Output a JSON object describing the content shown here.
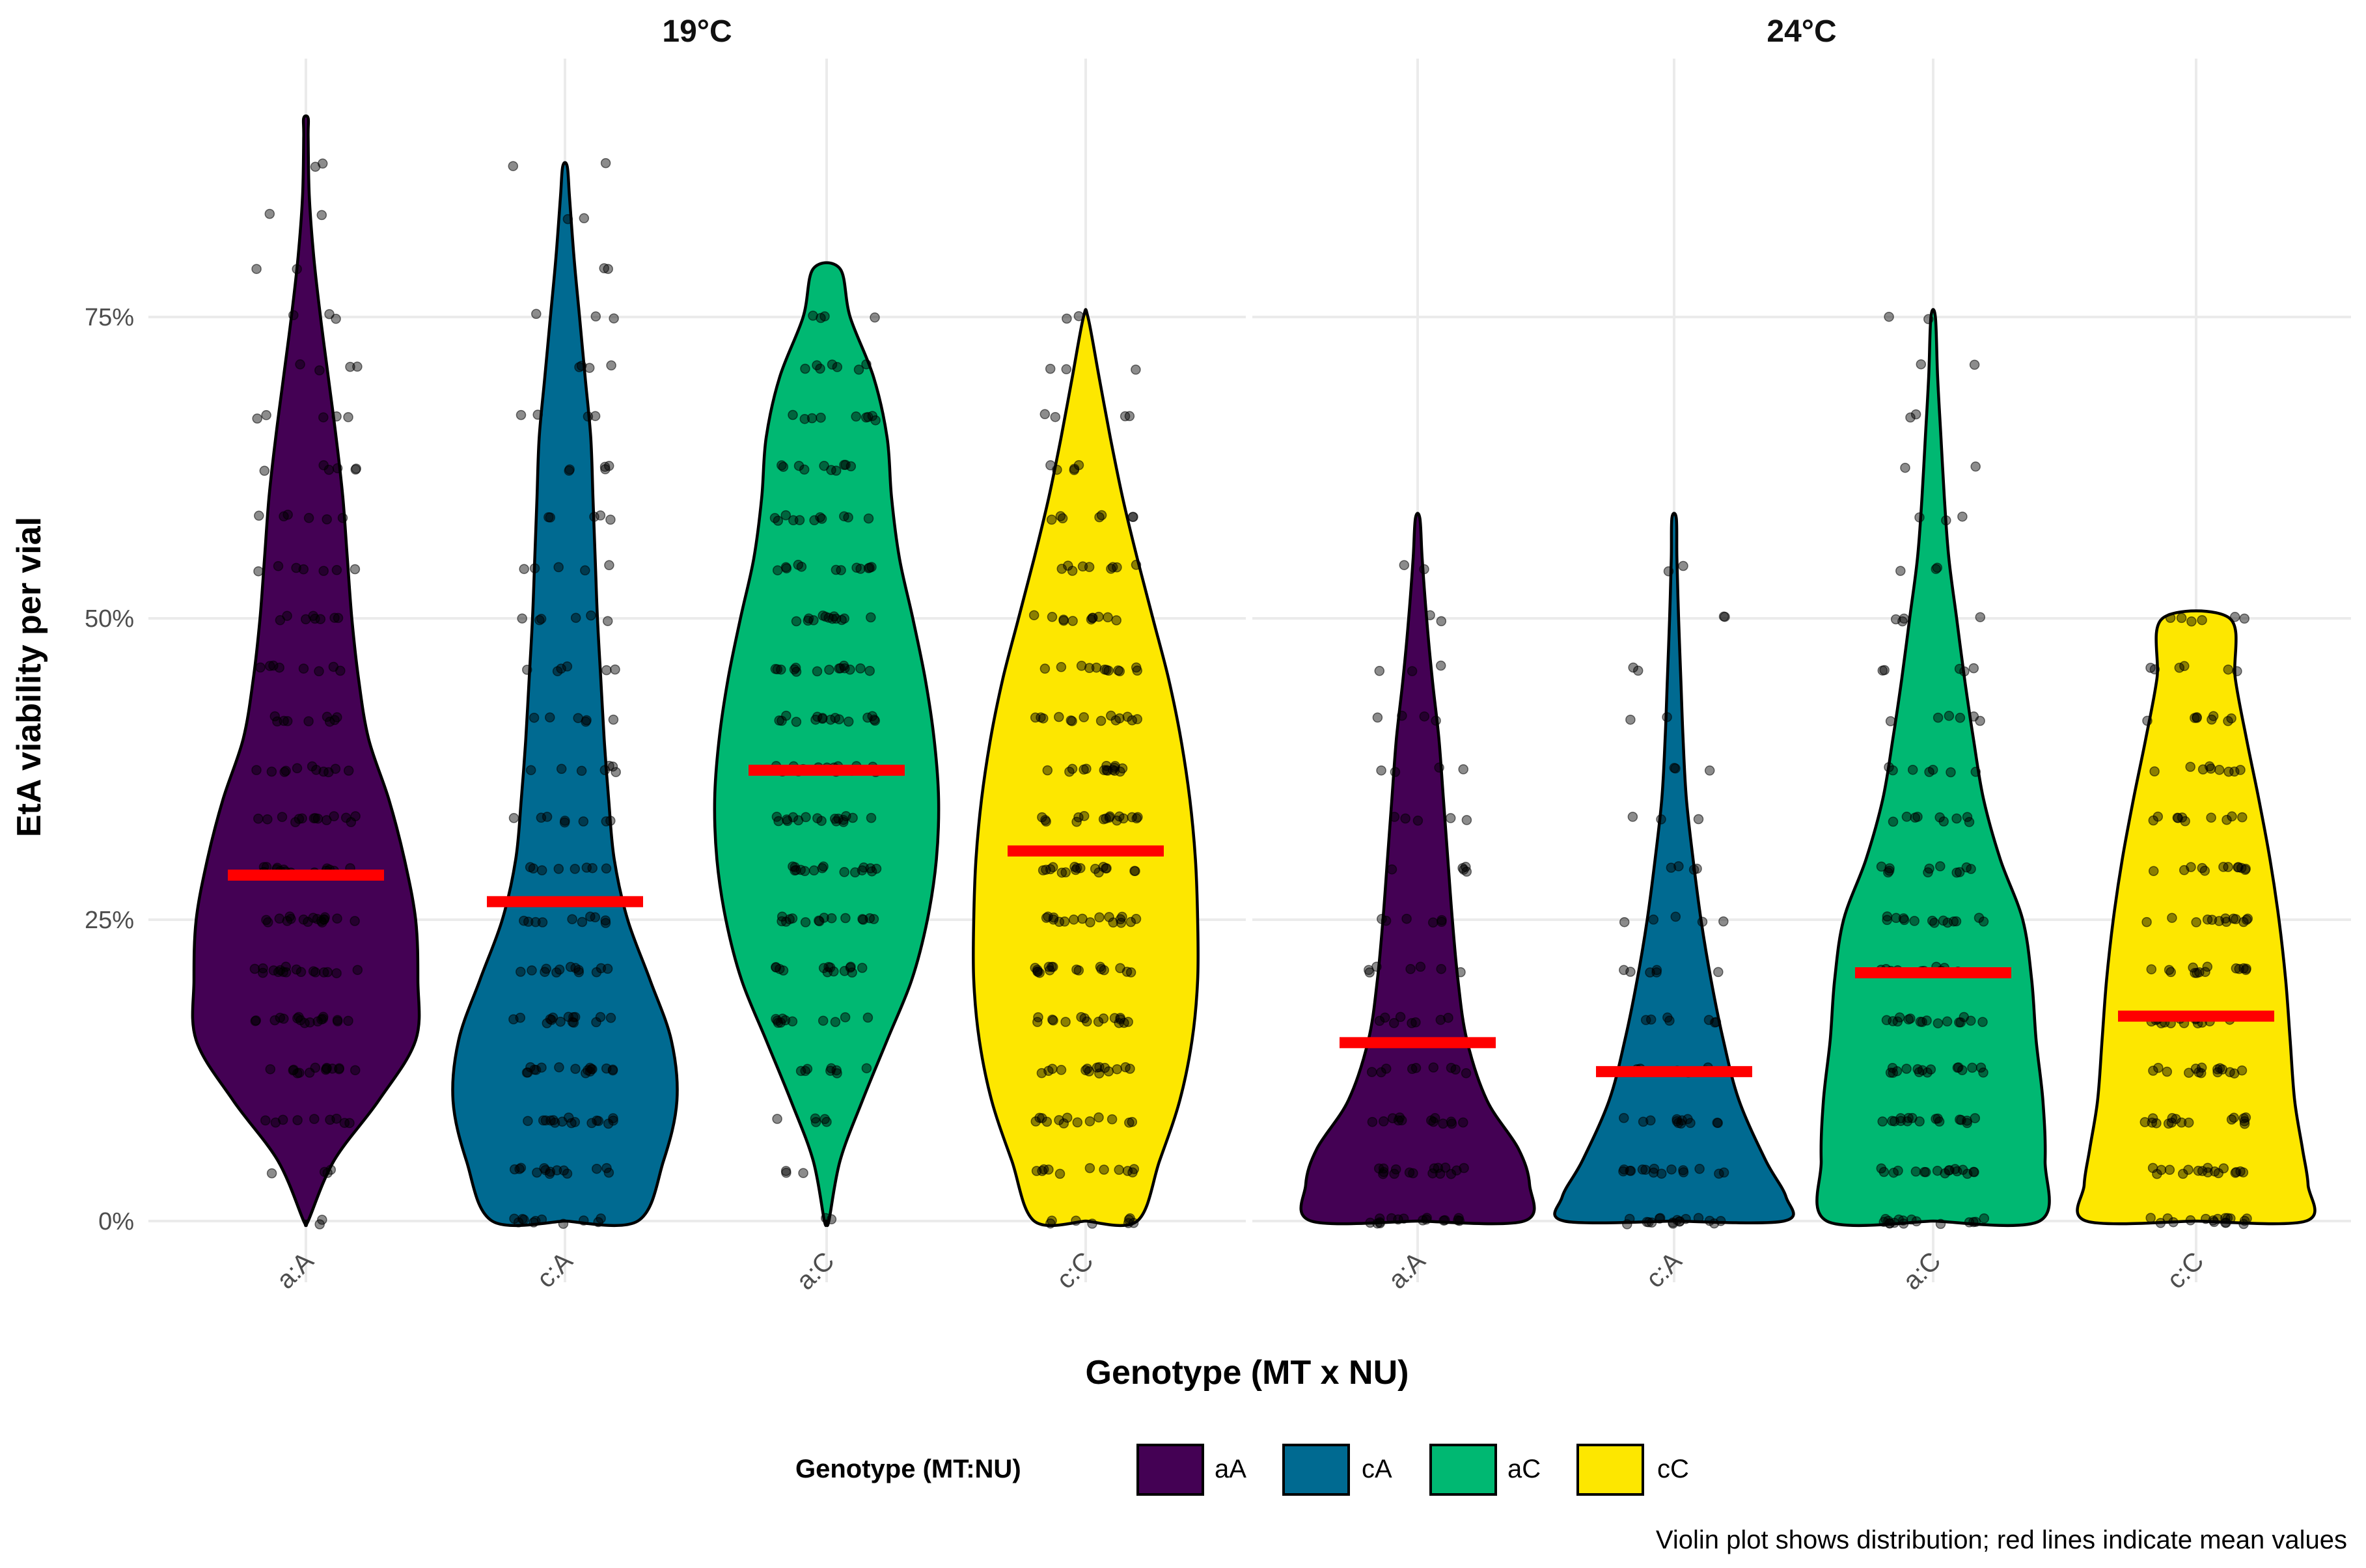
{
  "chart_data": {
    "type": "violin",
    "ylabel": "EtA viability per vial",
    "xlabel": "Genotype (MT x NU)",
    "ylim": [
      -0.05,
      0.95
    ],
    "yticks": [
      0,
      0.25,
      0.5,
      0.75
    ],
    "ytick_labels": [
      "0%",
      "25%",
      "50%",
      "75%"
    ],
    "categories": [
      "a:A",
      "c:A",
      "a:C",
      "c:C"
    ],
    "legend": {
      "title": "Genotype (MT:NU)",
      "entries": [
        {
          "label": "aA",
          "color": "#440154"
        },
        {
          "label": "cA",
          "color": "#006a91"
        },
        {
          "label": "aC",
          "color": "#00b872"
        },
        {
          "label": "cC",
          "color": "#fde700"
        }
      ]
    },
    "caption": "Violin plot shows distribution; red lines indicate mean values",
    "panels": [
      {
        "title": "19°C",
        "violins": [
          {
            "category": "a:A",
            "color": "#440154",
            "mean": 0.287,
            "min": 0,
            "max": 0.915,
            "density": [
              [
                0,
                0.02
              ],
              [
                0.05,
                0.25
              ],
              [
                0.1,
                0.65
              ],
              [
                0.15,
                0.98
              ],
              [
                0.2,
                1.0
              ],
              [
                0.25,
                0.98
              ],
              [
                0.3,
                0.88
              ],
              [
                0.35,
                0.74
              ],
              [
                0.4,
                0.56
              ],
              [
                0.45,
                0.47
              ],
              [
                0.5,
                0.41
              ],
              [
                0.55,
                0.37
              ],
              [
                0.6,
                0.33
              ],
              [
                0.65,
                0.27
              ],
              [
                0.7,
                0.2
              ],
              [
                0.75,
                0.13
              ],
              [
                0.8,
                0.07
              ],
              [
                0.85,
                0.03
              ],
              [
                0.9,
                0.02
              ],
              [
                0.915,
                0.02
              ]
            ]
          },
          {
            "category": "c:A",
            "color": "#006a91",
            "mean": 0.265,
            "min": 0,
            "max": 0.875,
            "density": [
              [
                0,
                0.65
              ],
              [
                0.05,
                0.88
              ],
              [
                0.1,
                1.0
              ],
              [
                0.15,
                0.95
              ],
              [
                0.2,
                0.76
              ],
              [
                0.25,
                0.56
              ],
              [
                0.3,
                0.44
              ],
              [
                0.35,
                0.39
              ],
              [
                0.4,
                0.35
              ],
              [
                0.45,
                0.32
              ],
              [
                0.5,
                0.29
              ],
              [
                0.55,
                0.27
              ],
              [
                0.6,
                0.25
              ],
              [
                0.65,
                0.23
              ],
              [
                0.7,
                0.18
              ],
              [
                0.75,
                0.13
              ],
              [
                0.8,
                0.08
              ],
              [
                0.85,
                0.04
              ],
              [
                0.875,
                0.02
              ]
            ]
          },
          {
            "category": "a:C",
            "color": "#00b872",
            "mean": 0.374,
            "min": 0,
            "max": 0.79,
            "density": [
              [
                0,
                0.02
              ],
              [
                0.05,
                0.12
              ],
              [
                0.1,
                0.32
              ],
              [
                0.15,
                0.54
              ],
              [
                0.2,
                0.76
              ],
              [
                0.25,
                0.9
              ],
              [
                0.3,
                0.98
              ],
              [
                0.35,
                1.0
              ],
              [
                0.4,
                0.96
              ],
              [
                0.45,
                0.88
              ],
              [
                0.5,
                0.77
              ],
              [
                0.55,
                0.65
              ],
              [
                0.6,
                0.58
              ],
              [
                0.65,
                0.54
              ],
              [
                0.7,
                0.42
              ],
              [
                0.75,
                0.21
              ],
              [
                0.79,
                0.12
              ]
            ]
          },
          {
            "category": "c:C",
            "color": "#fde700",
            "mean": 0.307,
            "min": 0,
            "max": 0.75,
            "density": [
              [
                0,
                0.46
              ],
              [
                0.05,
                0.66
              ],
              [
                0.1,
                0.84
              ],
              [
                0.15,
                0.95
              ],
              [
                0.2,
                1.0
              ],
              [
                0.25,
                1.0
              ],
              [
                0.3,
                0.98
              ],
              [
                0.35,
                0.93
              ],
              [
                0.4,
                0.85
              ],
              [
                0.45,
                0.74
              ],
              [
                0.5,
                0.6
              ],
              [
                0.55,
                0.46
              ],
              [
                0.6,
                0.33
              ],
              [
                0.65,
                0.22
              ],
              [
                0.7,
                0.12
              ],
              [
                0.75,
                0.02
              ]
            ]
          }
        ]
      },
      {
        "title": "24°C",
        "violins": [
          {
            "category": "a:A",
            "color": "#440154",
            "mean": 0.148,
            "min": 0,
            "max": 0.583,
            "density": [
              [
                0,
                0.95
              ],
              [
                0.03,
                1.0
              ],
              [
                0.06,
                0.9
              ],
              [
                0.1,
                0.62
              ],
              [
                0.15,
                0.44
              ],
              [
                0.2,
                0.36
              ],
              [
                0.25,
                0.31
              ],
              [
                0.3,
                0.27
              ],
              [
                0.35,
                0.23
              ],
              [
                0.4,
                0.19
              ],
              [
                0.45,
                0.13
              ],
              [
                0.5,
                0.08
              ],
              [
                0.55,
                0.04
              ],
              [
                0.583,
                0.02
              ]
            ]
          },
          {
            "category": "c:A",
            "color": "#006a91",
            "mean": 0.124,
            "min": 0,
            "max": 0.583,
            "density": [
              [
                0,
                0.98
              ],
              [
                0.02,
                1.0
              ],
              [
                0.05,
                0.82
              ],
              [
                0.1,
                0.58
              ],
              [
                0.15,
                0.44
              ],
              [
                0.2,
                0.33
              ],
              [
                0.25,
                0.24
              ],
              [
                0.3,
                0.17
              ],
              [
                0.35,
                0.11
              ],
              [
                0.4,
                0.08
              ],
              [
                0.45,
                0.06
              ],
              [
                0.5,
                0.04
              ],
              [
                0.55,
                0.025
              ],
              [
                0.583,
                0.02
              ]
            ]
          },
          {
            "category": "a:C",
            "color": "#00b872",
            "mean": 0.206,
            "min": 0,
            "max": 0.75,
            "density": [
              [
                0,
                0.95
              ],
              [
                0.05,
                1.0
              ],
              [
                0.1,
                0.98
              ],
              [
                0.15,
                0.92
              ],
              [
                0.2,
                0.88
              ],
              [
                0.25,
                0.8
              ],
              [
                0.3,
                0.6
              ],
              [
                0.35,
                0.45
              ],
              [
                0.4,
                0.36
              ],
              [
                0.45,
                0.28
              ],
              [
                0.5,
                0.21
              ],
              [
                0.55,
                0.14
              ],
              [
                0.6,
                0.1
              ],
              [
                0.65,
                0.07
              ],
              [
                0.7,
                0.04
              ],
              [
                0.75,
                0.02
              ]
            ]
          },
          {
            "category": "c:C",
            "color": "#fde700",
            "mean": 0.17,
            "min": 0,
            "max": 0.5,
            "density": [
              [
                0,
                0.98
              ],
              [
                0.03,
                1.0
              ],
              [
                0.06,
                0.95
              ],
              [
                0.1,
                0.88
              ],
              [
                0.15,
                0.84
              ],
              [
                0.2,
                0.8
              ],
              [
                0.25,
                0.74
              ],
              [
                0.3,
                0.66
              ],
              [
                0.35,
                0.56
              ],
              [
                0.4,
                0.45
              ],
              [
                0.45,
                0.35
              ],
              [
                0.5,
                0.3
              ]
            ]
          }
        ]
      }
    ]
  }
}
